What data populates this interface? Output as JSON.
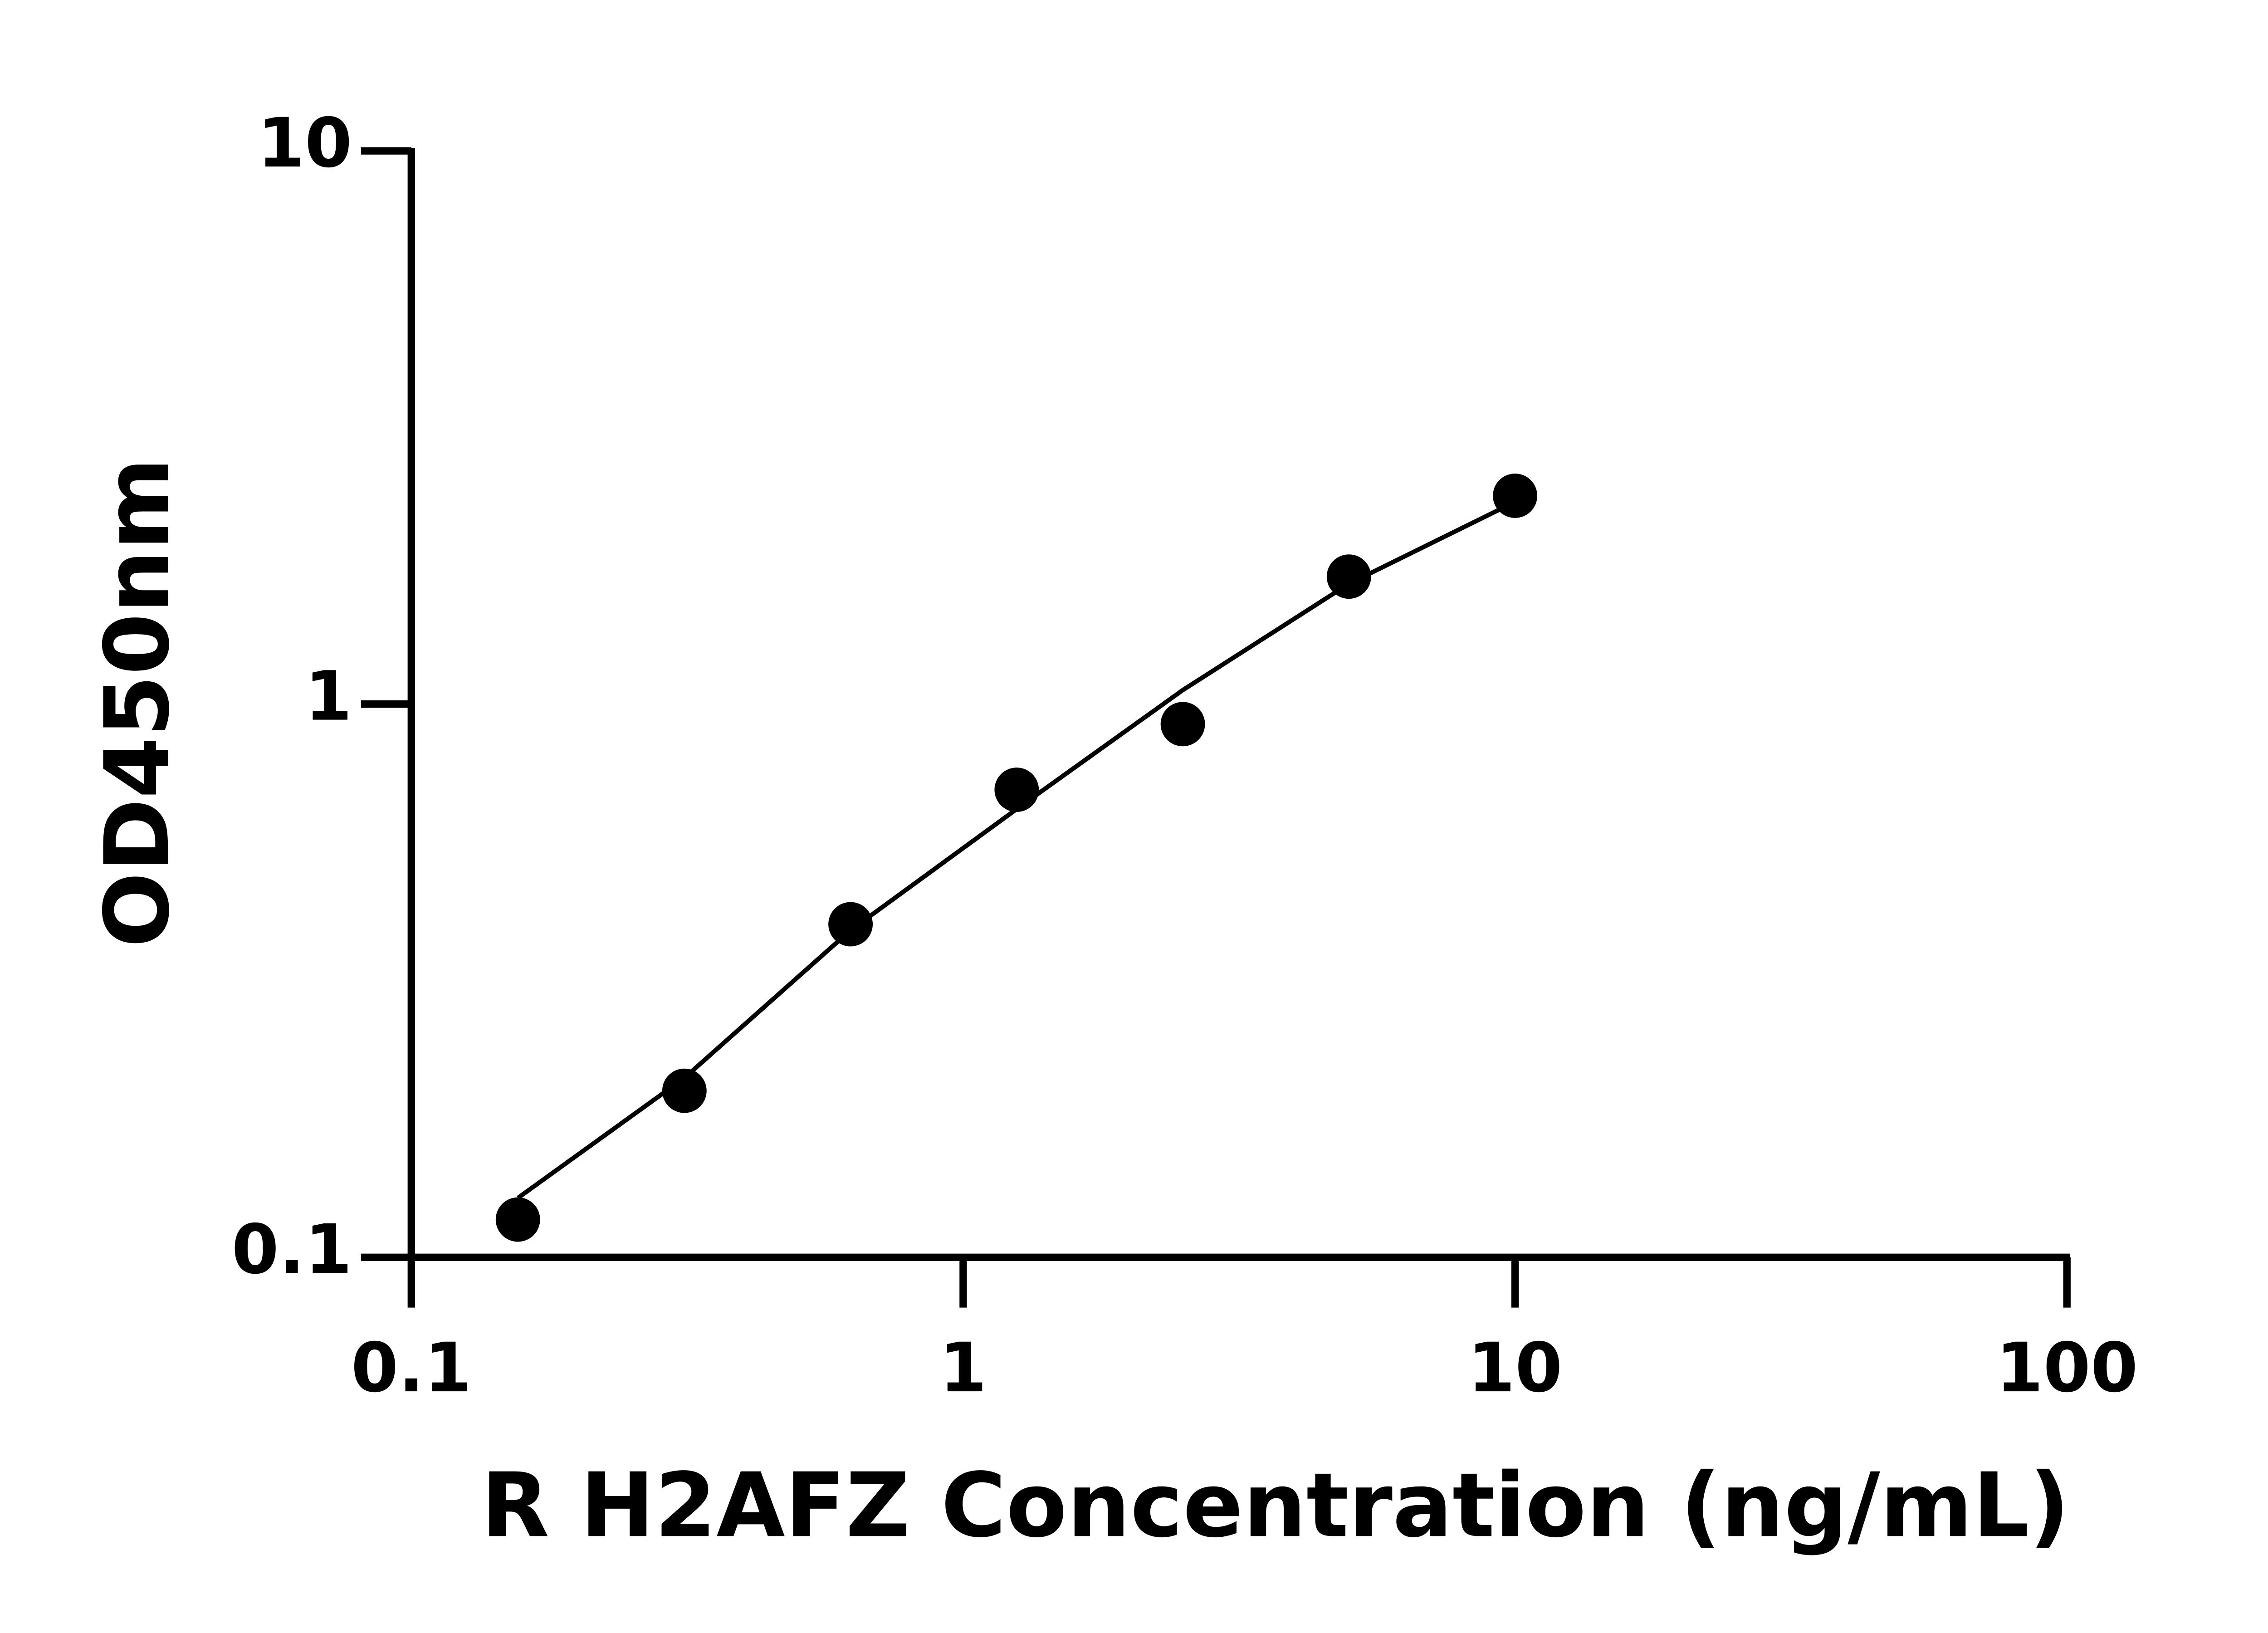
{
  "chart_data": {
    "type": "scatter",
    "x_label": "R H2AFZ Concentration (ng/mL)",
    "y_label": "OD450nm",
    "x": [
      0.156,
      0.3125,
      0.625,
      1.25,
      2.5,
      5,
      10
    ],
    "values": [
      0.117,
      0.2,
      0.4,
      0.7,
      0.92,
      1.7,
      2.38
    ],
    "color": "#000000",
    "fit_line": {
      "x": [
        0.156,
        0.3125,
        0.625,
        1.25,
        2.5,
        5,
        10
      ],
      "values": [
        0.128,
        0.211,
        0.39,
        0.646,
        1.06,
        1.65,
        2.32
      ]
    },
    "xlim": [
      0.1,
      100
    ],
    "xticks": [
      0.1,
      1,
      10,
      100
    ],
    "ylim": [
      0.1,
      10
    ],
    "yticks": [
      0.1,
      1,
      10
    ],
    "log_x": true,
    "log_y": true,
    "grid": false
  }
}
